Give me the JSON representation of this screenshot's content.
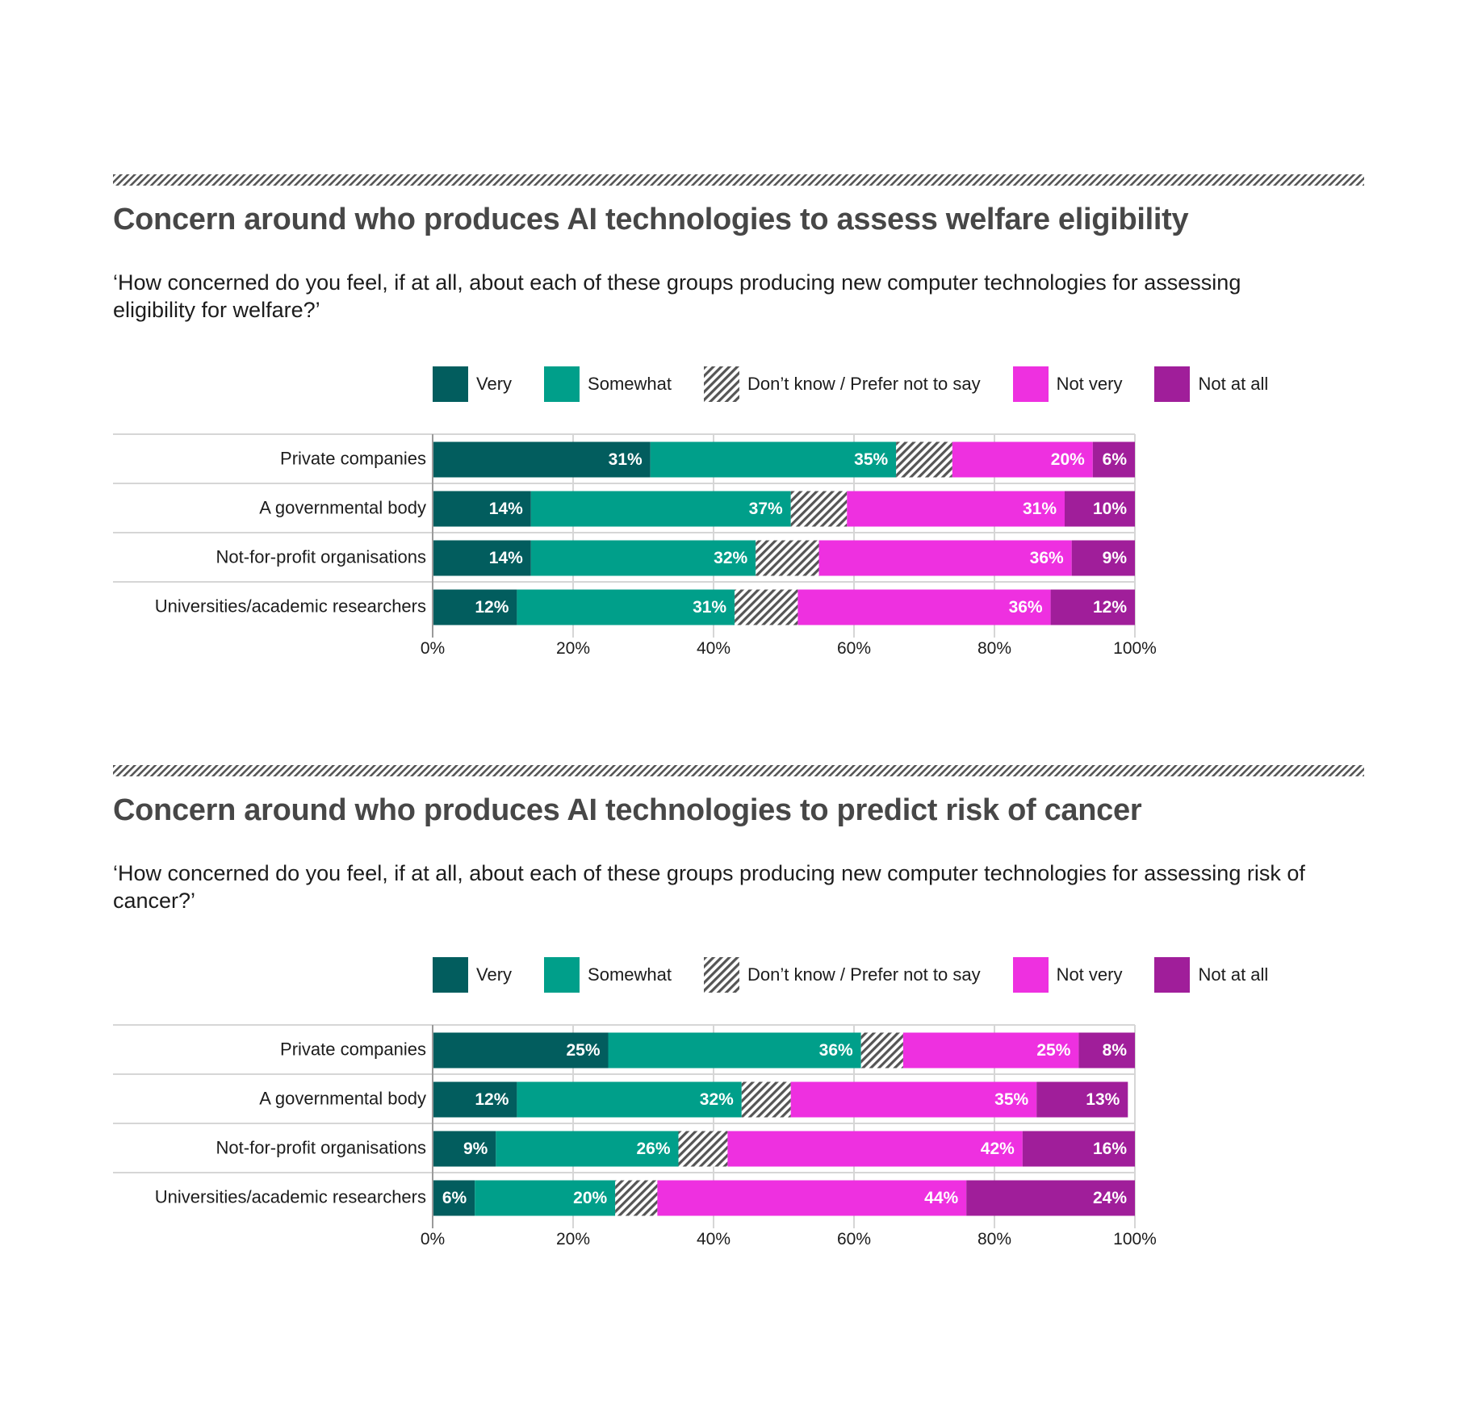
{
  "colors": {
    "very": "#025d5e",
    "somewhat": "#009f8a",
    "dont_know": "#555555",
    "not_very": "#ee30e0",
    "not_at_all": "#a01e9a",
    "title": "#474747"
  },
  "legend": [
    {
      "key": "very",
      "label": "Very"
    },
    {
      "key": "somewhat",
      "label": "Somewhat"
    },
    {
      "key": "dont_know",
      "label": "Don’t know / Prefer not to say"
    },
    {
      "key": "not_very",
      "label": "Not very"
    },
    {
      "key": "not_at_all",
      "label": "Not at all"
    }
  ],
  "chart_data": [
    {
      "type": "bar",
      "orientation": "horizontal",
      "stacked": true,
      "title": "Concern around who produces AI technologies to assess welfare eligibility",
      "subtitle": "‘How concerned do you feel, if at all, about each of these groups producing new computer technologies for assessing eligibility for welfare?’",
      "categories": [
        "Private companies",
        "A governmental body",
        "Not-for-profit organisations",
        "Universities/academic researchers"
      ],
      "series": [
        {
          "name": "Very",
          "key": "very",
          "values": [
            31,
            14,
            14,
            12
          ],
          "labels": [
            "31%",
            "14%",
            "14%",
            "12%"
          ]
        },
        {
          "name": "Somewhat",
          "key": "somewhat",
          "values": [
            35,
            37,
            32,
            31
          ],
          "labels": [
            "35%",
            "37%",
            "32%",
            "31%"
          ]
        },
        {
          "name": "Don’t know / Prefer not to say",
          "key": "dont_know",
          "values": [
            8,
            8,
            9,
            9
          ],
          "labels": [
            "",
            "",
            "",
            ""
          ]
        },
        {
          "name": "Not very",
          "key": "not_very",
          "values": [
            20,
            31,
            36,
            36
          ],
          "labels": [
            "20%",
            "31%",
            "36%",
            "36%"
          ]
        },
        {
          "name": "Not at all",
          "key": "not_at_all",
          "values": [
            6,
            10,
            9,
            12
          ],
          "labels": [
            "6%",
            "10%",
            "9%",
            "12%"
          ]
        }
      ],
      "xlim": [
        0,
        100
      ],
      "xticks": [
        "0%",
        "20%",
        "40%",
        "60%",
        "80%",
        "100%"
      ],
      "legend_position": "top"
    },
    {
      "type": "bar",
      "orientation": "horizontal",
      "stacked": true,
      "title": "Concern around who produces AI technologies to predict risk of cancer",
      "subtitle": "‘How concerned do you feel, if at all, about each of these groups producing new computer technologies for assessing risk of cancer?’",
      "categories": [
        "Private companies",
        "A governmental body",
        "Not-for-profit organisations",
        "Universities/academic researchers"
      ],
      "series": [
        {
          "name": "Very",
          "key": "very",
          "values": [
            25,
            12,
            9,
            6
          ],
          "labels": [
            "25%",
            "12%",
            "9%",
            "6%"
          ]
        },
        {
          "name": "Somewhat",
          "key": "somewhat",
          "values": [
            36,
            32,
            26,
            20
          ],
          "labels": [
            "36%",
            "32%",
            "26%",
            "20%"
          ]
        },
        {
          "name": "Don’t know / Prefer not to say",
          "key": "dont_know",
          "values": [
            6,
            7,
            7,
            6
          ],
          "labels": [
            "",
            "",
            "",
            ""
          ]
        },
        {
          "name": "Not very",
          "key": "not_very",
          "values": [
            25,
            35,
            42,
            44
          ],
          "labels": [
            "25%",
            "35%",
            "42%",
            "44%"
          ]
        },
        {
          "name": "Not at all",
          "key": "not_at_all",
          "values": [
            8,
            13,
            16,
            24
          ],
          "labels": [
            "8%",
            "13%",
            "16%",
            "24%"
          ]
        }
      ],
      "xlim": [
        0,
        100
      ],
      "xticks": [
        "0%",
        "20%",
        "40%",
        "60%",
        "80%",
        "100%"
      ],
      "legend_position": "top"
    }
  ]
}
